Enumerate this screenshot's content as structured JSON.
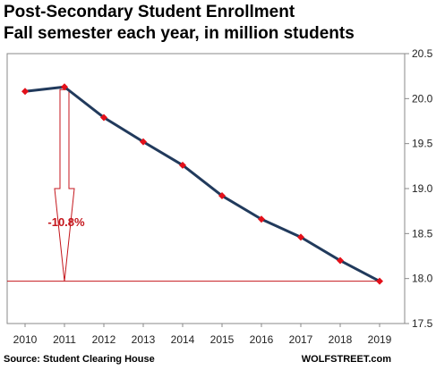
{
  "chart_data": {
    "type": "line",
    "title": "Post-Secondary  Student Enrollment",
    "subtitle": "Fall semester each year, in million students",
    "x": [
      "2010",
      "2011",
      "2012",
      "2013",
      "2014",
      "2015",
      "2016",
      "2017",
      "2018",
      "2019"
    ],
    "series": [
      {
        "values": [
          20.08,
          20.13,
          19.79,
          19.52,
          19.26,
          18.92,
          18.66,
          18.46,
          18.2,
          17.97
        ]
      }
    ],
    "ylim": [
      17.5,
      20.5
    ],
    "yticks": [
      "17.5",
      "18.0",
      "18.5",
      "19.0",
      "19.5",
      "20.0",
      "20.5"
    ],
    "grid": false,
    "annotation": {
      "text": "-10.8%",
      "from_year": "2011",
      "to_value": 17.97
    },
    "source": "Source: Student Clearing House",
    "brand": "WOLFSTREET.com",
    "colors": {
      "line": "#213a5c",
      "marker": "#e3101a",
      "annotation": "#c4161c",
      "axis": "#888888"
    }
  }
}
